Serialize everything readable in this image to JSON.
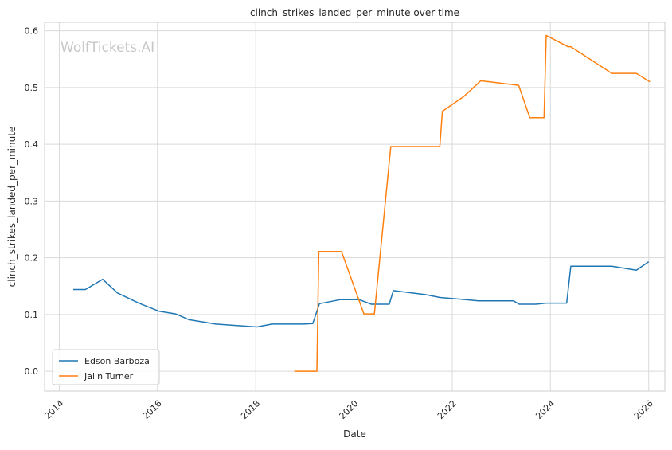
{
  "watermark": "WolfTickets.AI",
  "chart_data": {
    "type": "line",
    "title": "clinch_strikes_landed_per_minute over time",
    "xlabel": "Date",
    "ylabel": "clinch_strikes_landed_per_minute",
    "xlim": [
      "2013-09-14",
      "2026-05-01"
    ],
    "ylim": [
      -0.035,
      0.615
    ],
    "x_ticks": [
      "2014",
      "2016",
      "2018",
      "2020",
      "2022",
      "2024",
      "2026"
    ],
    "y_ticks": [
      "0.0",
      "0.1",
      "0.2",
      "0.3",
      "0.4",
      "0.5",
      "0.6"
    ],
    "grid": true,
    "legend_position": "lower-left",
    "series": [
      {
        "name": "Edson Barboza",
        "color": "#1f77b4",
        "points": [
          [
            "2014-04-15",
            0.144
          ],
          [
            "2014-07-15",
            0.144
          ],
          [
            "2014-11-20",
            0.162
          ],
          [
            "2015-03-10",
            0.138
          ],
          [
            "2015-08-15",
            0.12
          ],
          [
            "2016-01-10",
            0.106
          ],
          [
            "2016-05-15",
            0.101
          ],
          [
            "2016-08-20",
            0.091
          ],
          [
            "2017-03-10",
            0.083
          ],
          [
            "2018-01-10",
            0.078
          ],
          [
            "2018-05-01",
            0.083
          ],
          [
            "2018-12-15",
            0.083
          ],
          [
            "2019-03-01",
            0.084
          ],
          [
            "2019-04-20",
            0.119
          ],
          [
            "2019-09-20",
            0.126
          ],
          [
            "2020-02-10",
            0.126
          ],
          [
            "2020-05-10",
            0.118
          ],
          [
            "2020-09-20",
            0.118
          ],
          [
            "2020-10-20",
            0.142
          ],
          [
            "2021-06-15",
            0.135
          ],
          [
            "2021-10-01",
            0.13
          ],
          [
            "2022-03-01",
            0.127
          ],
          [
            "2022-07-15",
            0.124
          ],
          [
            "2023-04-01",
            0.124
          ],
          [
            "2023-05-15",
            0.118
          ],
          [
            "2023-09-15",
            0.118
          ],
          [
            "2023-12-01",
            0.12
          ],
          [
            "2024-05-01",
            0.12
          ],
          [
            "2024-06-01",
            0.185
          ],
          [
            "2025-04-01",
            0.185
          ],
          [
            "2025-10-01",
            0.178
          ],
          [
            "2026-01-01",
            0.193
          ]
        ]
      },
      {
        "name": "Jalin Turner",
        "color": "#ff7f0e",
        "points": [
          [
            "2018-10-15",
            0.0
          ],
          [
            "2019-04-01",
            0.0
          ],
          [
            "2019-04-15",
            0.211
          ],
          [
            "2019-10-01",
            0.211
          ],
          [
            "2020-03-15",
            0.101
          ],
          [
            "2020-06-01",
            0.101
          ],
          [
            "2020-10-01",
            0.396
          ],
          [
            "2021-10-01",
            0.396
          ],
          [
            "2021-10-20",
            0.458
          ],
          [
            "2022-04-01",
            0.485
          ],
          [
            "2022-08-01",
            0.512
          ],
          [
            "2023-05-10",
            0.504
          ],
          [
            "2023-08-01",
            0.447
          ],
          [
            "2023-11-15",
            0.447
          ],
          [
            "2023-12-01",
            0.592
          ],
          [
            "2024-05-10",
            0.572
          ],
          [
            "2024-06-01",
            0.572
          ],
          [
            "2025-04-01",
            0.525
          ],
          [
            "2025-10-01",
            0.525
          ],
          [
            "2026-01-10",
            0.51
          ]
        ]
      }
    ]
  }
}
